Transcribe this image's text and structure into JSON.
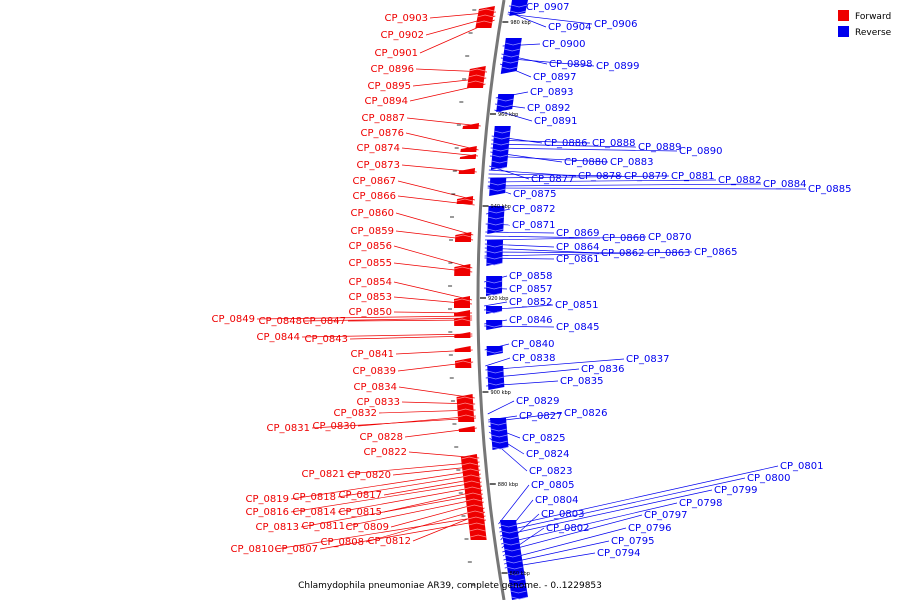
{
  "title": "Chlamydophila pneumoniae AR39, complete genome. - 0..1229853",
  "legend": [
    {
      "label": "Forward",
      "color": "#ee0000"
    },
    {
      "label": "Reverse",
      "color": "#0000ee"
    }
  ],
  "colors": {
    "forward": "#ee0000",
    "reverse": "#0000ee",
    "backbone": "#777777"
  },
  "ticks": [
    "980 kbp",
    "960 kbp",
    "940 kbp",
    "920 kbp",
    "900 kbp",
    "880 kbp",
    "860 kbp"
  ],
  "forward_labels": [
    "CP_0903",
    "CP_0902",
    "CP_0901",
    "CP_0896",
    "CP_0895",
    "CP_0894",
    "CP_0887",
    "CP_0876",
    "CP_0874",
    "CP_0873",
    "CP_0867",
    "CP_0866",
    "CP_0860",
    "CP_0859",
    "CP_0856",
    "CP_0855",
    "CP_0854",
    "CP_0853",
    "CP_0850",
    "CP_0849",
    "CP_0848",
    "CP_0847",
    "CP_0844",
    "CP_0843",
    "CP_0841",
    "CP_0839",
    "CP_0834",
    "CP_0833",
    "CP_0832",
    "CP_0830",
    "CP_0831",
    "CP_0828",
    "CP_0822",
    "CP_0821",
    "CP_0820",
    "CP_0819",
    "CP_0818",
    "CP_0817",
    "CP_0816",
    "CP_0814",
    "CP_0815",
    "CP_0813",
    "CP_0811",
    "CP_0809",
    "CP_0808",
    "CP_0812",
    "CP_0810",
    "CP_0807"
  ],
  "reverse_labels": [
    "CP_0907",
    "CP_0904",
    "CP_0906",
    "CP_0900",
    "CP_0898",
    "CP_0899",
    "CP_0897",
    "CP_0893",
    "CP_0892",
    "CP_0891",
    "CP_0886",
    "CP_0888",
    "CP_0889",
    "CP_0890",
    "CP_0880",
    "CP_0883",
    "CP_0877",
    "CP_0878",
    "CP_0879",
    "CP_0881",
    "CP_0882",
    "CP_0884",
    "CP_0885",
    "CP_0875",
    "CP_0872",
    "CP_0871",
    "CP_0869",
    "CP_0868",
    "CP_0870",
    "CP_0864",
    "CP_0862",
    "CP_0863",
    "CP_0865",
    "CP_0861",
    "CP_0858",
    "CP_0857",
    "CP_0852",
    "CP_0851",
    "CP_0846",
    "CP_0845",
    "CP_0840",
    "CP_0838",
    "CP_0837",
    "CP_0836",
    "CP_0835",
    "CP_0829",
    "CP_0827",
    "CP_0826",
    "CP_0825",
    "CP_0824",
    "CP_0823",
    "CP_0805",
    "CP_0801",
    "CP_0800",
    "CP_0799",
    "CP_0804",
    "CP_0798",
    "CP_0803",
    "CP_0797",
    "CP_0802",
    "CP_0796",
    "CP_0795",
    "CP_0794"
  ]
}
